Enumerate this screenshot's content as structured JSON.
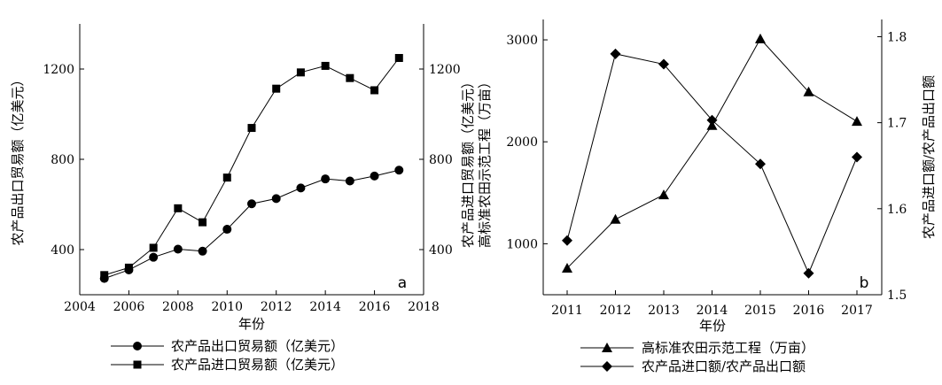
{
  "chart_data": [
    {
      "type": "line",
      "panel_label": "a",
      "xlabel": "年份",
      "ylabel_left": "农产品出口贸易额（亿美元）",
      "ylabel_right": "农产品进口贸易额（亿美元）",
      "x_ticks": [
        "2004",
        "2006",
        "2008",
        "2010",
        "2012",
        "2014",
        "2016",
        "2018"
      ],
      "y_left_ticks": [
        "400",
        "800",
        "1200"
      ],
      "y_right_ticks": [
        "400",
        "800",
        "1200"
      ],
      "xlim": [
        2004,
        2018
      ],
      "ylim_left": [
        200,
        1400
      ],
      "ylim_right": [
        200,
        1400
      ],
      "grid": false,
      "legend_position": "below",
      "x": [
        2005,
        2006,
        2007,
        2008,
        2009,
        2010,
        2011,
        2012,
        2013,
        2014,
        2015,
        2016,
        2017
      ],
      "series": [
        {
          "name": "农产品出口贸易额（亿美元）",
          "marker": "circle",
          "axis": "left",
          "values": [
            272,
            310,
            366,
            402,
            393,
            490,
            603,
            626,
            673,
            713,
            704,
            726,
            752
          ]
        },
        {
          "name": "农产品进口贸易额（亿美元）",
          "marker": "square",
          "axis": "right",
          "values": [
            287,
            320,
            408,
            583,
            521,
            719,
            939,
            1113,
            1185,
            1214,
            1160,
            1106,
            1249
          ]
        }
      ]
    },
    {
      "type": "line",
      "panel_label": "b",
      "xlabel": "年份",
      "ylabel_left": "农产品进口贸易额（亿美元）\n高标准农田示范工程（万亩）",
      "ylabel_right": "农产品进口额/农产品出口额",
      "categories": [
        "2011",
        "2012",
        "2013",
        "2014",
        "2015",
        "2016",
        "2017"
      ],
      "y_left_ticks": [
        "1000",
        "2000",
        "3000"
      ],
      "y_right_ticks": [
        "1.5",
        "1.6",
        "1.7",
        "1.8"
      ],
      "ylim_left": [
        500,
        3200
      ],
      "ylim_right": [
        1.5,
        1.82
      ],
      "grid": false,
      "legend_position": "below",
      "series": [
        {
          "name": "高标准农田示范工程（万亩）",
          "marker": "triangle",
          "axis": "left",
          "values": [
            760,
            1240,
            1480,
            2160,
            3010,
            2490,
            2200
          ]
        },
        {
          "name": "农产品进口额/农产品出口额",
          "marker": "diamond",
          "axis": "right",
          "values": [
            1.563,
            1.78,
            1.768,
            1.703,
            1.652,
            1.525,
            1.66
          ]
        }
      ]
    }
  ]
}
